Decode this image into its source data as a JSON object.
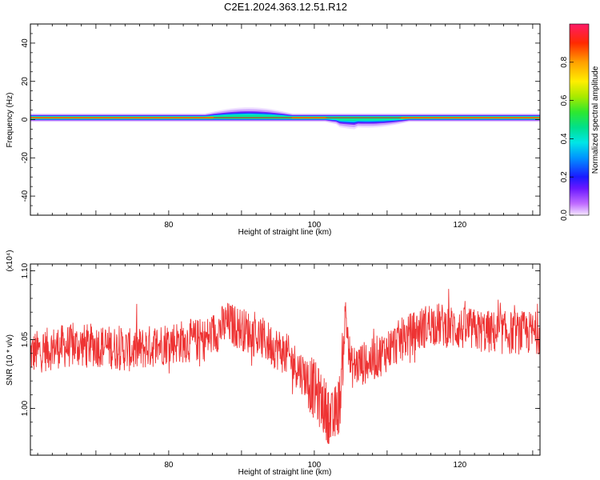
{
  "figure": {
    "title": "C2E1.2024.363.12.51.R12"
  },
  "chart_data": [
    {
      "type": "heatmap",
      "xlabel": "Height of straight line (km)",
      "ylabel": "Frequency (Hz)",
      "xlim": [
        61,
        131
      ],
      "ylim": [
        -50,
        50
      ],
      "xticks": [
        80,
        100,
        120
      ],
      "yticks": [
        -40,
        -20,
        0,
        20,
        40
      ],
      "colorbar": {
        "label": "Normalized spectral amplitude",
        "range": [
          0,
          1
        ],
        "ticks": [
          "0.0",
          "0.2",
          "0.4",
          "0.6",
          "0.8"
        ]
      },
      "band": {
        "center_hz": 1,
        "segments": [
          {
            "from": 61,
            "to": 85,
            "state": "steady narrow line (high amplitude)"
          },
          {
            "from": 86,
            "to": 96,
            "state": "broadened, upper edge to ~5 Hz"
          },
          {
            "from": 97,
            "to": 101,
            "state": "narrow, high amplitude"
          },
          {
            "from": 102,
            "to": 112,
            "state": "broadened, lower edge to ~-3 Hz"
          },
          {
            "from": 112,
            "to": 131,
            "state": "steady narrow line (high amplitude)"
          }
        ]
      }
    },
    {
      "type": "line",
      "xlabel": "Height of straight line (km)",
      "ylabel": "SNR (10 * v/v)",
      "y_multiplier": "(x10⁴)",
      "xlim": [
        61,
        131
      ],
      "ylim": [
        0.966,
        1.105
      ],
      "xticks": [
        80,
        100,
        120
      ],
      "yticks": [
        "1.00",
        "1.05",
        "1.10"
      ],
      "series": [
        {
          "color": "#ee3333",
          "envelope": [
            [
              61,
              1.04
            ],
            [
              65,
              1.045
            ],
            [
              70,
              1.046
            ],
            [
              75,
              1.042
            ],
            [
              80,
              1.048
            ],
            [
              85,
              1.05
            ],
            [
              88,
              1.062
            ],
            [
              90,
              1.058
            ],
            [
              93,
              1.05
            ],
            [
              96,
              1.04
            ],
            [
              99,
              1.022
            ],
            [
              101,
              1.005
            ],
            [
              102.5,
              0.99
            ],
            [
              103.5,
              1.005
            ],
            [
              104.3,
              1.07
            ],
            [
              105,
              1.03
            ],
            [
              108,
              1.035
            ],
            [
              112,
              1.05
            ],
            [
              116,
              1.062
            ],
            [
              120,
              1.058
            ],
            [
              125,
              1.055
            ],
            [
              131,
              1.055
            ]
          ]
        }
      ]
    }
  ]
}
